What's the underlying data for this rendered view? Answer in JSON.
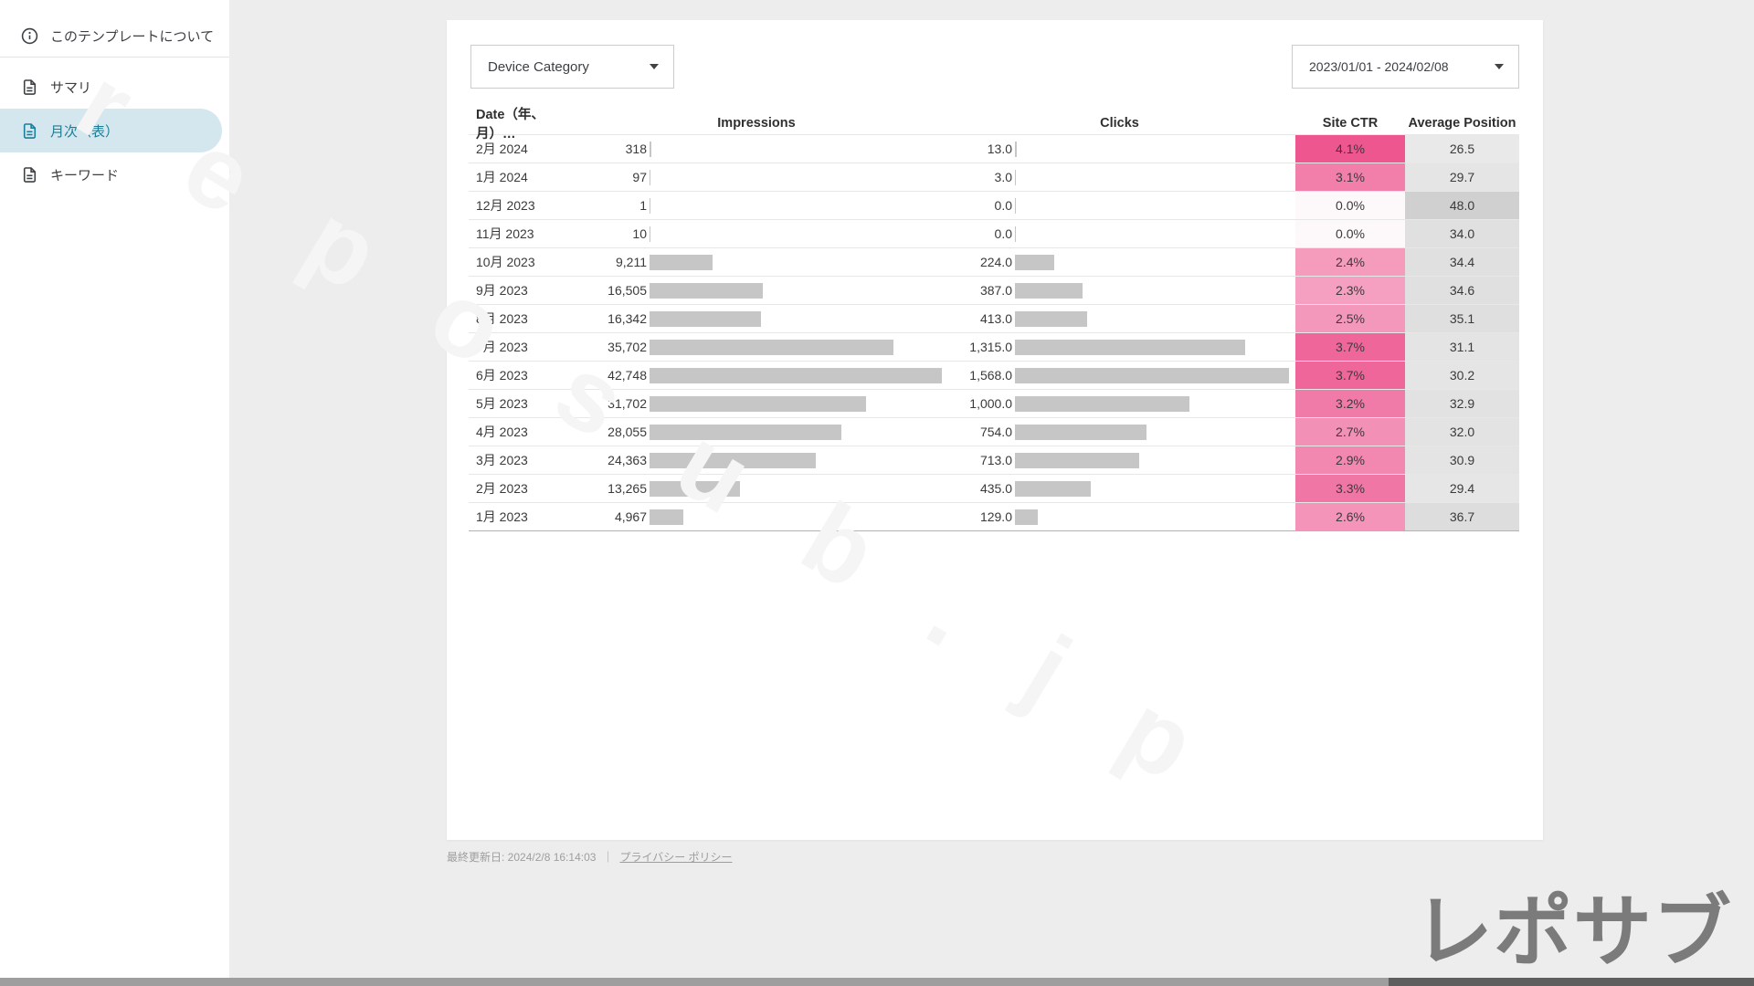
{
  "sidebar": {
    "about_label": "このテンプレートについて",
    "items": [
      {
        "label": "サマリ",
        "active": false
      },
      {
        "label": "月次（表）",
        "active": true
      },
      {
        "label": "キーワード",
        "active": false
      }
    ],
    "active_text_color": "#1a7e98",
    "active_bg_color": "#d4e6ee"
  },
  "filters": {
    "device_category_label": "Device Category",
    "date_range_value": "2023/01/01 - 2024/02/08"
  },
  "table": {
    "columns": [
      "Date（年、月）…",
      "Impressions",
      "Clicks",
      "Site CTR",
      "Average Position"
    ],
    "bar_color": "#c6c6c6",
    "rows": [
      {
        "date": "2月 2024",
        "impressions": "318",
        "impressions_value": 318,
        "clicks": "13.0",
        "clicks_value": 13,
        "ctr": "4.1%",
        "ctr_color": "#ed568f",
        "position": "26.5",
        "position_color": "#e9e9e9"
      },
      {
        "date": "1月 2024",
        "impressions": "97",
        "impressions_value": 97,
        "clicks": "3.0",
        "clicks_value": 3,
        "ctr": "3.1%",
        "ctr_color": "#f17faa",
        "position": "29.7",
        "position_color": "#e5e5e5"
      },
      {
        "date": "12月 2023",
        "impressions": "1",
        "impressions_value": 1,
        "clicks": "0.0",
        "clicks_value": 0,
        "ctr": "0.0%",
        "ctr_color": "#fdf8fa",
        "position": "48.0",
        "position_color": "#d0d0d0"
      },
      {
        "date": "11月 2023",
        "impressions": "10",
        "impressions_value": 10,
        "clicks": "0.0",
        "clicks_value": 0,
        "ctr": "0.0%",
        "ctr_color": "#fdf8fa",
        "position": "34.0",
        "position_color": "#e0e0e0"
      },
      {
        "date": "10月 2023",
        "impressions": "9,211",
        "impressions_value": 9211,
        "clicks": "224.0",
        "clicks_value": 224,
        "ctr": "2.4%",
        "ctr_color": "#f59cbd",
        "position": "34.4",
        "position_color": "#e0e0e0"
      },
      {
        "date": "9月 2023",
        "impressions": "16,505",
        "impressions_value": 16505,
        "clicks": "387.0",
        "clicks_value": 387,
        "ctr": "2.3%",
        "ctr_color": "#f5a0c0",
        "position": "34.6",
        "position_color": "#e0e0e0"
      },
      {
        "date": "8月 2023",
        "impressions": "16,342",
        "impressions_value": 16342,
        "clicks": "413.0",
        "clicks_value": 413,
        "ctr": "2.5%",
        "ctr_color": "#f498bb",
        "position": "35.1",
        "position_color": "#dfdfdf"
      },
      {
        "date": "7月 2023",
        "impressions": "35,702",
        "impressions_value": 35702,
        "clicks": "1,315.0",
        "clicks_value": 1315,
        "ctr": "3.7%",
        "ctr_color": "#ef679a",
        "position": "31.1",
        "position_color": "#e4e4e4"
      },
      {
        "date": "6月 2023",
        "impressions": "42,748",
        "impressions_value": 42748,
        "clicks": "1,568.0",
        "clicks_value": 1568,
        "ctr": "3.7%",
        "ctr_color": "#ef679a",
        "position": "30.2",
        "position_color": "#e5e5e5"
      },
      {
        "date": "5月 2023",
        "impressions": "31,702",
        "impressions_value": 31702,
        "clicks": "1,000.0",
        "clicks_value": 1000,
        "ctr": "3.2%",
        "ctr_color": "#f17ba8",
        "position": "32.9",
        "position_color": "#e2e2e2"
      },
      {
        "date": "4月 2023",
        "impressions": "28,055",
        "impressions_value": 28055,
        "clicks": "754.0",
        "clicks_value": 754,
        "ctr": "2.7%",
        "ctr_color": "#f390b5",
        "position": "32.0",
        "position_color": "#e3e3e3"
      },
      {
        "date": "3月 2023",
        "impressions": "24,363",
        "impressions_value": 24363,
        "clicks": "713.0",
        "clicks_value": 713,
        "ctr": "2.9%",
        "ctr_color": "#f287b0",
        "position": "30.9",
        "position_color": "#e4e4e4"
      },
      {
        "date": "2月 2023",
        "impressions": "13,265",
        "impressions_value": 13265,
        "clicks": "435.0",
        "clicks_value": 435,
        "ctr": "3.3%",
        "ctr_color": "#f077a5",
        "position": "29.4",
        "position_color": "#e6e6e6"
      },
      {
        "date": "1月 2023",
        "impressions": "4,967",
        "impressions_value": 4967,
        "clicks": "129.0",
        "clicks_value": 129,
        "ctr": "2.6%",
        "ctr_color": "#f494b8",
        "position": "36.7",
        "position_color": "#dddddd"
      }
    ]
  },
  "footer": {
    "updated": "最終更新日: 2024/2/8 16:14:03",
    "separator": "｜",
    "privacy": "プライバシー ポリシー"
  },
  "watermark": {
    "diagonal": "reposub.jp",
    "logo": "レポサブ"
  }
}
